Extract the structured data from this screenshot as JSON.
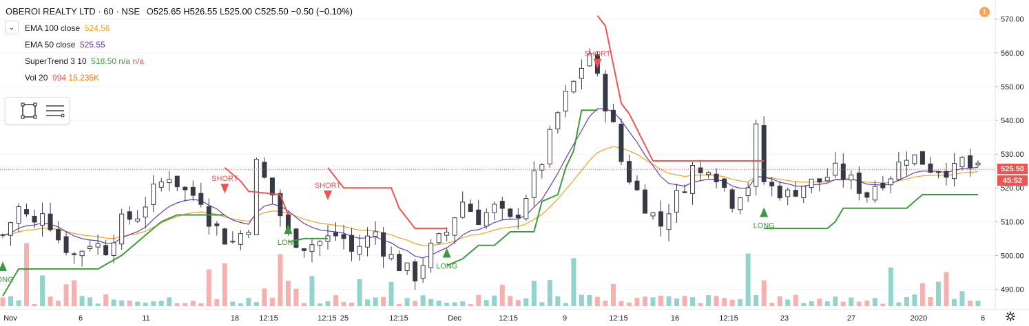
{
  "header": {
    "symbol": "OBEROI REALTY LTD · 60 · NSE",
    "o_label": "O",
    "o": "525.65",
    "h_label": "H",
    "h": "526.55",
    "l_label": "L",
    "l": "525.00",
    "c_label": "C",
    "c": "525.50",
    "chg": "−0.50 (−0.10%)"
  },
  "indicators": [
    {
      "name": "EMA 100 close",
      "values": [
        "524.56"
      ],
      "colors": [
        "#f0a020"
      ]
    },
    {
      "name": "EMA 50 close",
      "values": [
        "525.55"
      ],
      "colors": [
        "#673ab7"
      ]
    },
    {
      "name": "SuperTrend 3 10",
      "values": [
        "518.50",
        "n/a",
        "n/a"
      ],
      "colors": [
        "#3c9a3c",
        "#3c9a3c",
        "#ef5350"
      ]
    },
    {
      "name": "Vol 20",
      "values": [
        "994",
        "15.235K"
      ],
      "colors": [
        "#ef5350",
        "#f57c00"
      ]
    }
  ],
  "toolbar": {
    "collapse_icon": "chevron-down-icon",
    "tools": [
      "rectangle-icon",
      "drawing-list-icon"
    ]
  },
  "price_axis": {
    "ticks": [
      "570.00",
      "560.00",
      "550.00",
      "540.00",
      "530.00",
      "520.00",
      "510.00",
      "500.00",
      "490.00"
    ]
  },
  "price_tag": {
    "last": "525.50",
    "countdown": "45:52",
    "last_color": "#ef5350",
    "countdown_color": "#ef5350"
  },
  "time_axis": {
    "ticks": [
      "Nov",
      "6",
      "11",
      "12:15",
      "18",
      "12:15",
      "25",
      "12:15",
      "Dec",
      "12:15",
      "9",
      "12:15",
      "16",
      "12:15",
      "23",
      "27",
      "2020",
      "6"
    ]
  },
  "colors": {
    "up": "#26a69a",
    "down": "#ef5350",
    "candle": "#363a45",
    "supertrend_up": "#3c9a3c",
    "supertrend_down": "#ef5350",
    "ema50": "#673ab7",
    "ema100": "#f0a020"
  },
  "chart_data": {
    "type": "candlestick",
    "title": "OBEROI REALTY LTD · 60 · NSE",
    "ylim": [
      484,
      574
    ],
    "x_ticks": [
      "Nov",
      "6",
      "11",
      "12:15",
      "18",
      "12:15",
      "25",
      "12:15",
      "Dec",
      "12:15",
      "9",
      "12:15",
      "16",
      "12:15",
      "23",
      "27",
      "2020",
      "6"
    ],
    "close_path": [
      [
        0,
        506
      ],
      [
        2,
        514
      ],
      [
        4,
        509
      ],
      [
        5,
        514
      ],
      [
        7,
        505
      ],
      [
        9,
        500
      ],
      [
        11,
        504
      ],
      [
        13,
        502
      ],
      [
        15,
        510
      ],
      [
        17,
        512
      ],
      [
        19,
        519
      ],
      [
        21,
        524
      ],
      [
        23,
        519
      ],
      [
        25,
        517
      ],
      [
        26,
        511
      ],
      [
        27,
        508
      ],
      [
        28,
        505
      ],
      [
        29,
        504
      ],
      [
        31,
        509
      ],
      [
        32,
        527
      ],
      [
        34,
        518
      ],
      [
        35,
        512
      ],
      [
        36,
        506
      ],
      [
        38,
        503
      ],
      [
        40,
        504
      ],
      [
        42,
        506
      ],
      [
        43,
        505
      ],
      [
        44,
        501
      ],
      [
        46,
        505
      ],
      [
        47,
        507
      ],
      [
        48,
        502
      ],
      [
        50,
        497
      ],
      [
        52,
        494
      ],
      [
        53,
        498
      ],
      [
        54,
        502
      ],
      [
        56,
        507
      ],
      [
        57,
        512
      ],
      [
        58,
        516
      ],
      [
        60,
        511
      ],
      [
        62,
        514
      ],
      [
        64,
        510
      ],
      [
        65,
        513
      ],
      [
        66,
        518
      ],
      [
        67,
        523
      ],
      [
        68,
        528
      ],
      [
        69,
        535
      ],
      [
        70,
        542
      ],
      [
        71,
        547
      ],
      [
        72,
        551
      ],
      [
        73,
        556
      ],
      [
        74,
        560
      ],
      [
        75,
        552
      ],
      [
        76,
        545
      ],
      [
        77,
        538
      ],
      [
        78,
        528
      ],
      [
        79,
        523
      ],
      [
        80,
        519
      ],
      [
        81,
        515
      ],
      [
        82,
        512
      ],
      [
        83,
        509
      ],
      [
        84,
        514
      ],
      [
        86,
        521
      ],
      [
        87,
        526
      ],
      [
        88,
        524
      ],
      [
        89,
        527
      ],
      [
        90,
        524
      ],
      [
        91,
        520
      ],
      [
        92,
        516
      ],
      [
        93,
        519
      ],
      [
        94,
        521
      ],
      [
        95,
        537
      ],
      [
        96,
        522
      ],
      [
        97,
        520
      ],
      [
        99,
        518
      ],
      [
        101,
        521
      ],
      [
        103,
        522
      ],
      [
        105,
        525
      ],
      [
        107,
        522
      ],
      [
        108,
        520
      ],
      [
        109,
        518
      ],
      [
        110,
        521
      ],
      [
        112,
        524
      ],
      [
        113,
        527
      ],
      [
        114,
        530
      ],
      [
        116,
        528
      ],
      [
        117,
        526
      ],
      [
        118,
        526
      ],
      [
        120,
        525
      ],
      [
        121,
        528
      ],
      [
        122,
        526
      ],
      [
        123,
        525
      ]
    ],
    "supertrend": [
      {
        "dir": "up",
        "points": [
          [
            0,
            488
          ],
          [
            2,
            496
          ],
          [
            12,
            496
          ],
          [
            15,
            500
          ],
          [
            20,
            510
          ],
          [
            22,
            512
          ],
          [
            28,
            512
          ]
        ]
      },
      {
        "dir": "down",
        "points": [
          [
            28,
            526
          ],
          [
            30,
            522
          ],
          [
            31,
            519
          ],
          [
            35,
            518
          ],
          [
            36,
            512
          ]
        ]
      },
      {
        "dir": "up",
        "points": [
          [
            36,
            504
          ],
          [
            38,
            505
          ],
          [
            41,
            505
          ]
        ]
      },
      {
        "dir": "down",
        "points": [
          [
            41,
            526
          ],
          [
            43,
            520
          ],
          [
            49,
            520
          ],
          [
            50,
            514
          ],
          [
            52,
            508
          ],
          [
            56,
            508
          ]
        ]
      },
      {
        "dir": "up",
        "points": [
          [
            56,
            497
          ],
          [
            58,
            499
          ],
          [
            60,
            503
          ],
          [
            62,
            503
          ],
          [
            64,
            507
          ],
          [
            67,
            507
          ],
          [
            68,
            516
          ],
          [
            70,
            518
          ],
          [
            71,
            526
          ],
          [
            72,
            531
          ],
          [
            73,
            543
          ],
          [
            75,
            543
          ]
        ]
      },
      {
        "dir": "down",
        "points": [
          [
            75,
            571
          ],
          [
            76,
            568
          ],
          [
            78,
            545
          ],
          [
            79,
            542
          ],
          [
            82,
            528
          ],
          [
            84,
            528
          ],
          [
            96,
            528
          ]
        ]
      },
      {
        "dir": "up",
        "points": [
          [
            96,
            508
          ],
          [
            104,
            508
          ],
          [
            105,
            510
          ],
          [
            106,
            514
          ],
          [
            114,
            514
          ],
          [
            115,
            516
          ],
          [
            116,
            518
          ],
          [
            123,
            518
          ]
        ]
      }
    ],
    "signals": [
      {
        "type": "long",
        "label": "LONG",
        "x": 0,
        "y": 497
      },
      {
        "type": "short",
        "label": "SHORT",
        "x": 28,
        "y": 520
      },
      {
        "type": "long",
        "label": "LONG",
        "x": 36,
        "y": 508
      },
      {
        "type": "short",
        "label": "SHORT",
        "x": 41,
        "y": 518
      },
      {
        "type": "long",
        "label": "LONG",
        "x": 56,
        "y": 501
      },
      {
        "type": "short",
        "label": "SHORT",
        "x": 75,
        "y": 557
      },
      {
        "type": "long",
        "label": "LONG",
        "x": 96,
        "y": 513
      }
    ],
    "last_price": 525.5,
    "volume_max_label": "15.235K"
  }
}
